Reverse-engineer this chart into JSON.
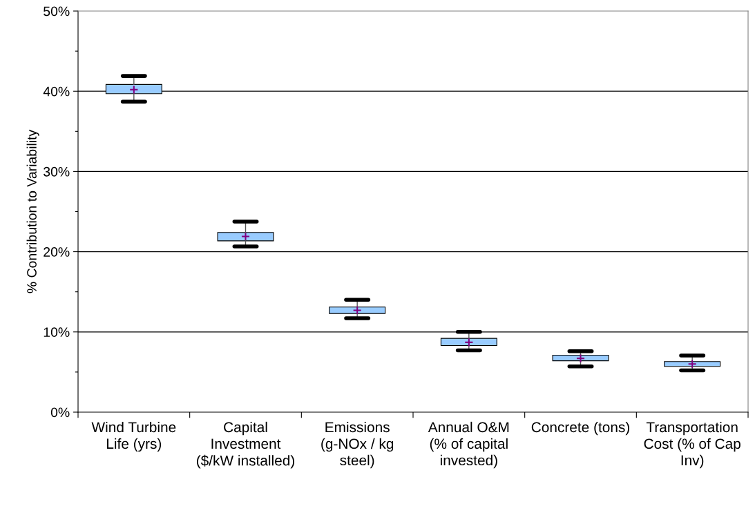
{
  "chart_data": {
    "type": "box",
    "ylabel": "% Contribution to Variability",
    "categories": [
      "Wind Turbine Life (yrs)",
      "Capital Investment ($/kW installed)",
      "Emissions (g-NOx / kg steel)",
      "Annual O&M (% of capital invested)",
      "Concrete (tons)",
      "Transportation Cost (% of Cap Inv)"
    ],
    "boxes": [
      {
        "low": 38.7,
        "q1": 39.7,
        "median": 40.2,
        "q3": 40.85,
        "high": 41.9
      },
      {
        "low": 20.65,
        "q1": 21.35,
        "median": 21.9,
        "q3": 22.4,
        "high": 23.75
      },
      {
        "low": 11.7,
        "q1": 12.3,
        "median": 12.7,
        "q3": 13.1,
        "high": 14.0
      },
      {
        "low": 7.7,
        "q1": 8.3,
        "median": 8.7,
        "q3": 9.2,
        "high": 10.0
      },
      {
        "low": 5.7,
        "q1": 6.4,
        "median": 6.7,
        "q3": 7.1,
        "high": 7.6
      },
      {
        "low": 5.2,
        "q1": 5.7,
        "median": 6.0,
        "q3": 6.3,
        "high": 7.05
      }
    ],
    "color": "#99ccff",
    "ylim": [
      0,
      50
    ],
    "yticks": [
      {
        "value": 0,
        "label": "0%"
      },
      {
        "value": 5,
        "label": null
      },
      {
        "value": 10,
        "label": "10%"
      },
      {
        "value": 15,
        "label": null
      },
      {
        "value": 20,
        "label": "20%"
      },
      {
        "value": 25,
        "label": null
      },
      {
        "value": 30,
        "label": "30%"
      },
      {
        "value": 35,
        "label": null
      },
      {
        "value": 40,
        "label": "40%"
      },
      {
        "value": 45,
        "label": null
      },
      {
        "value": 50,
        "label": "50%"
      }
    ],
    "grid": "y"
  }
}
